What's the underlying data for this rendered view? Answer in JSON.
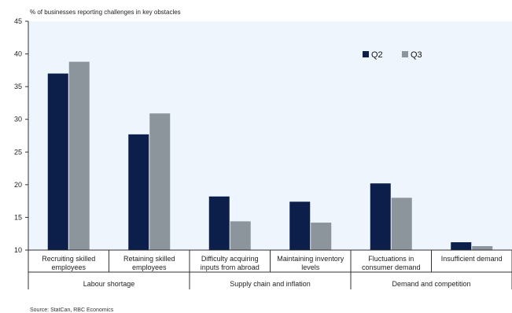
{
  "chart_data": {
    "type": "bar",
    "title": "",
    "subtitle": "% of businesses reporting challenges in key obstacles",
    "xlabel": "",
    "ylabel": "",
    "ylim": [
      10,
      45
    ],
    "yticks": [
      "10",
      "15",
      "20",
      "25",
      "30",
      "35",
      "40",
      "45"
    ],
    "categories": [
      [
        "Recruiting skilled",
        "employees"
      ],
      [
        "Retaining skilled",
        "employees"
      ],
      [
        "Difficulty acquiring",
        "inputs from abroad"
      ],
      [
        "Maintaining inventory",
        "levels"
      ],
      [
        "Fluctuations in",
        "consumer demand"
      ],
      [
        "Insufficient demand"
      ]
    ],
    "groups": [
      {
        "label": "Labour shortage",
        "span": [
          0,
          1
        ]
      },
      {
        "label": "Supply chain and inflation",
        "span": [
          2,
          3
        ]
      },
      {
        "label": "Demand and competition",
        "span": [
          4,
          5
        ]
      }
    ],
    "series": [
      {
        "name": "Q2",
        "color": "#0b1f4a",
        "values": [
          37.0,
          27.7,
          18.2,
          17.4,
          20.2,
          11.2
        ]
      },
      {
        "name": "Q3",
        "color": "#8c949c",
        "values": [
          38.8,
          30.9,
          14.4,
          14.2,
          18.0,
          10.6
        ]
      }
    ],
    "legend_position": "top-right",
    "grid": false,
    "plot_background": "#eef5fc",
    "source": "Source: StatCan, RBC Economics"
  }
}
